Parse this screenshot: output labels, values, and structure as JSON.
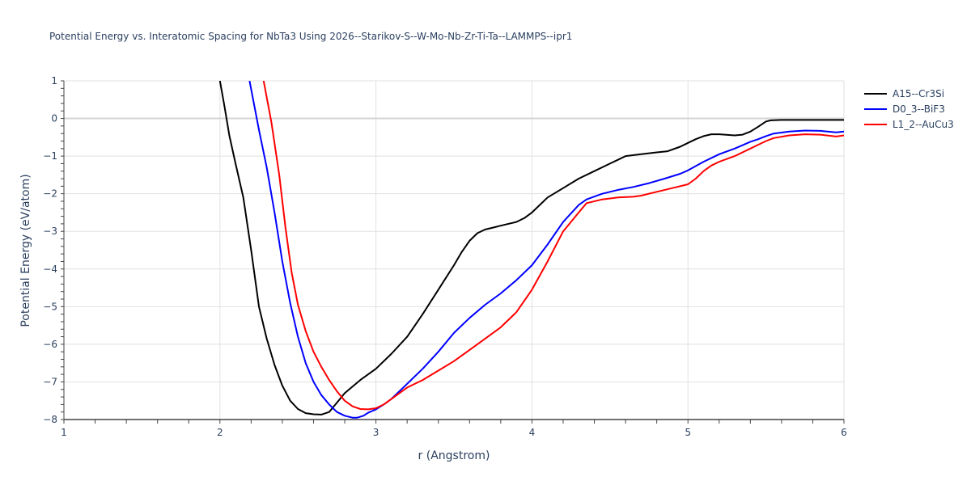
{
  "chart_data": {
    "type": "line",
    "title": "Potential Energy vs. Interatomic Spacing for NbTa3 Using 2026--Starikov-S--W-Mo-Nb-Zr-Ti-Ta--LAMMPS--ipr1",
    "xlabel": "r (Angstrom)",
    "ylabel": "Potential Energy (eV/atom)",
    "xlim": [
      1,
      6
    ],
    "ylim": [
      -8,
      1
    ],
    "xticks": [
      1,
      2,
      3,
      4,
      5,
      6
    ],
    "yticks": [
      1,
      0,
      -1,
      -2,
      -3,
      -4,
      -5,
      -6,
      -7,
      -8
    ],
    "grid": true,
    "legend_position": "right-top",
    "series": [
      {
        "name": "A15--Cr3Si",
        "color": "#000000",
        "x": [
          2.0,
          2.03,
          2.06,
          2.1,
          2.15,
          2.2,
          2.25,
          2.3,
          2.35,
          2.4,
          2.45,
          2.5,
          2.55,
          2.6,
          2.65,
          2.7,
          2.75,
          2.8,
          2.9,
          3.0,
          3.1,
          3.2,
          3.3,
          3.4,
          3.5,
          3.55,
          3.6,
          3.65,
          3.7,
          3.75,
          3.8,
          3.9,
          3.95,
          4.0,
          4.05,
          4.1,
          4.2,
          4.3,
          4.4,
          4.5,
          4.55,
          4.6,
          4.7,
          4.8,
          4.87,
          4.95,
          5.0,
          5.05,
          5.1,
          5.15,
          5.2,
          5.3,
          5.35,
          5.4,
          5.45,
          5.5,
          5.53,
          5.6,
          5.7,
          5.8,
          5.9,
          6.0
        ],
        "y": [
          1.0,
          0.3,
          -0.45,
          -1.2,
          -2.1,
          -3.5,
          -5.0,
          -5.85,
          -6.55,
          -7.1,
          -7.5,
          -7.72,
          -7.83,
          -7.86,
          -7.87,
          -7.8,
          -7.55,
          -7.3,
          -6.95,
          -6.65,
          -6.25,
          -5.8,
          -5.2,
          -4.55,
          -3.9,
          -3.55,
          -3.25,
          -3.05,
          -2.95,
          -2.9,
          -2.85,
          -2.75,
          -2.65,
          -2.5,
          -2.3,
          -2.1,
          -1.85,
          -1.6,
          -1.4,
          -1.2,
          -1.1,
          -1.0,
          -0.95,
          -0.9,
          -0.87,
          -0.75,
          -0.65,
          -0.55,
          -0.47,
          -0.42,
          -0.42,
          -0.45,
          -0.43,
          -0.35,
          -0.22,
          -0.08,
          -0.05,
          -0.04,
          -0.04,
          -0.04,
          -0.04,
          -0.04
        ]
      },
      {
        "name": "D0_3--BiF3",
        "color": "#0000ff",
        "x": [
          2.19,
          2.25,
          2.3,
          2.35,
          2.4,
          2.45,
          2.5,
          2.55,
          2.6,
          2.65,
          2.7,
          2.75,
          2.8,
          2.85,
          2.88,
          2.92,
          2.95,
          3.0,
          3.05,
          3.1,
          3.2,
          3.3,
          3.4,
          3.5,
          3.6,
          3.7,
          3.8,
          3.9,
          4.0,
          4.1,
          4.2,
          4.3,
          4.35,
          4.45,
          4.55,
          4.65,
          4.75,
          4.85,
          4.95,
          5.0,
          5.1,
          5.2,
          5.3,
          5.4,
          5.45,
          5.5,
          5.55,
          5.65,
          5.75,
          5.85,
          5.95,
          6.0
        ],
        "y": [
          1.0,
          -0.3,
          -1.3,
          -2.5,
          -3.8,
          -4.9,
          -5.8,
          -6.5,
          -7.0,
          -7.35,
          -7.6,
          -7.8,
          -7.9,
          -7.95,
          -7.95,
          -7.9,
          -7.82,
          -7.73,
          -7.6,
          -7.45,
          -7.05,
          -6.65,
          -6.2,
          -5.7,
          -5.3,
          -4.95,
          -4.65,
          -4.3,
          -3.9,
          -3.35,
          -2.75,
          -2.3,
          -2.15,
          -2.0,
          -1.9,
          -1.82,
          -1.72,
          -1.6,
          -1.47,
          -1.38,
          -1.15,
          -0.95,
          -0.8,
          -0.62,
          -0.55,
          -0.47,
          -0.4,
          -0.35,
          -0.32,
          -0.33,
          -0.37,
          -0.35
        ]
      },
      {
        "name": "L1_2--AuCu3",
        "color": "#ff0000",
        "x": [
          2.28,
          2.33,
          2.38,
          2.42,
          2.46,
          2.5,
          2.55,
          2.6,
          2.65,
          2.7,
          2.75,
          2.8,
          2.85,
          2.9,
          2.95,
          3.0,
          3.05,
          3.1,
          3.15,
          3.2,
          3.3,
          3.4,
          3.5,
          3.6,
          3.7,
          3.8,
          3.9,
          4.0,
          4.1,
          4.2,
          4.3,
          4.35,
          4.45,
          4.55,
          4.65,
          4.7,
          4.8,
          4.9,
          5.0,
          5.05,
          5.1,
          5.15,
          5.2,
          5.3,
          5.4,
          5.45,
          5.5,
          5.55,
          5.65,
          5.75,
          5.85,
          5.95,
          6.0
        ],
        "y": [
          1.0,
          -0.1,
          -1.5,
          -2.9,
          -4.1,
          -4.95,
          -5.65,
          -6.2,
          -6.6,
          -6.95,
          -7.25,
          -7.5,
          -7.65,
          -7.72,
          -7.73,
          -7.7,
          -7.6,
          -7.45,
          -7.3,
          -7.15,
          -6.95,
          -6.7,
          -6.45,
          -6.15,
          -5.85,
          -5.55,
          -5.15,
          -4.55,
          -3.8,
          -3.0,
          -2.5,
          -2.25,
          -2.15,
          -2.1,
          -2.08,
          -2.05,
          -1.95,
          -1.85,
          -1.75,
          -1.6,
          -1.4,
          -1.25,
          -1.15,
          -1.0,
          -0.8,
          -0.7,
          -0.6,
          -0.52,
          -0.45,
          -0.42,
          -0.43,
          -0.48,
          -0.45
        ]
      }
    ]
  }
}
